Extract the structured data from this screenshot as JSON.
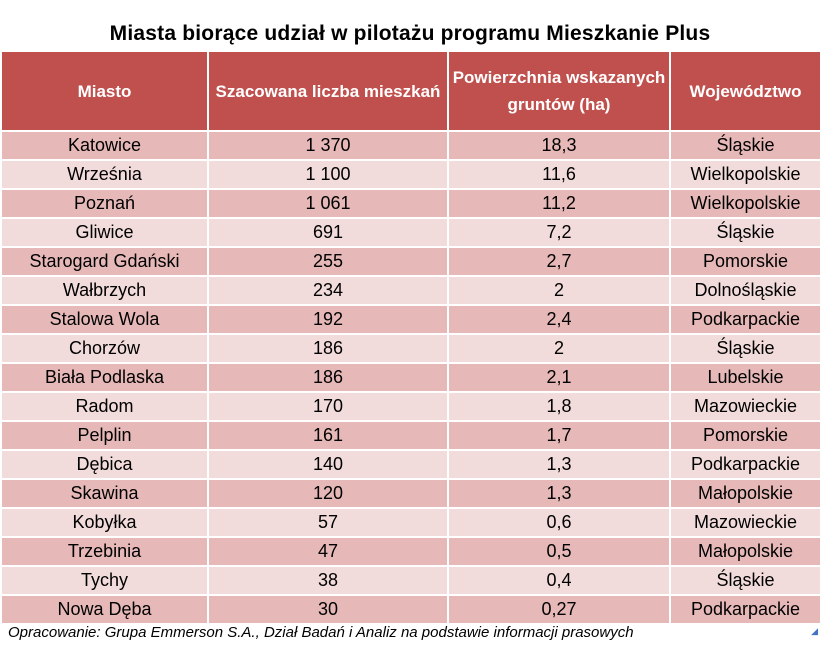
{
  "title": "Miasta biorące udział w pilotażu programu Mieszkanie Plus",
  "table": {
    "headers": [
      "Miasto",
      "Szacowana liczba mieszkań",
      "Powierzchnia wskazanych gruntów (ha)",
      "Województwo"
    ],
    "rows": [
      [
        "Katowice",
        "1 370",
        "18,3",
        "Śląskie"
      ],
      [
        "Września",
        "1 100",
        "11,6",
        "Wielkopolskie"
      ],
      [
        "Poznań",
        "1 061",
        "11,2",
        "Wielkopolskie"
      ],
      [
        "Gliwice",
        "691",
        "7,2",
        "Śląskie"
      ],
      [
        "Starogard Gdański",
        "255",
        "2,7",
        "Pomorskie"
      ],
      [
        "Wałbrzych",
        "234",
        "2",
        "Dolnośląskie"
      ],
      [
        "Stalowa Wola",
        "192",
        "2,4",
        "Podkarpackie"
      ],
      [
        "Chorzów",
        "186",
        "2",
        "Śląskie"
      ],
      [
        "Biała Podlaska",
        "186",
        "2,1",
        "Lubelskie"
      ],
      [
        "Radom",
        "170",
        "1,8",
        "Mazowieckie"
      ],
      [
        "Pelplin",
        "161",
        "1,7",
        "Pomorskie"
      ],
      [
        "Dębica",
        "140",
        "1,3",
        "Podkarpackie"
      ],
      [
        "Skawina",
        "120",
        "1,3",
        "Małopolskie"
      ],
      [
        "Kobyłka",
        "57",
        "0,6",
        "Mazowieckie"
      ],
      [
        "Trzebinia",
        "47",
        "0,5",
        "Małopolskie"
      ],
      [
        "Tychy",
        "38",
        "0,4",
        "Śląskie"
      ],
      [
        "Nowa Dęba",
        "30",
        "0,27",
        "Podkarpackie"
      ]
    ]
  },
  "footer": "Opracowanie: Grupa Emmerson S.A., Dział Badań i Analiz na podstawie informacji prasowych",
  "colors": {
    "header_bg": "#c0504d",
    "row_odd": "#e6b9b8",
    "row_even": "#f2dcdb"
  }
}
